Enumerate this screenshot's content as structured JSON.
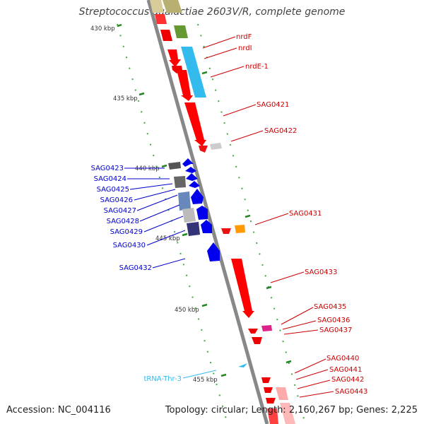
{
  "header": {
    "title": "Streptococcus agalactiae 2603V/R, complete genome"
  },
  "footer": {
    "accession_label": "Accession:",
    "accession": "NC_004116",
    "topology_label": "Topology:",
    "topology": "circular;",
    "length_label": "Length:",
    "length": "2,160,267 bp;",
    "genes_label": "Genes:",
    "genes": "2,225"
  },
  "colors": {
    "backbone": "#888888",
    "forward_gene": "#ff0000",
    "reverse_gene": "#0000ee",
    "label_red": "#cc0000",
    "label_blue": "#0000cc",
    "trna": "#33bbee",
    "tick": "#228822"
  },
  "ticks": [
    "430 kbp",
    "435 kbp",
    "440 kbp",
    "445 kbp",
    "450 kbp",
    "455 kbp"
  ],
  "labels_right": [
    "nrdF",
    "nrdI",
    "nrdE-1",
    "SAG0421",
    "SAG0422",
    "SAG0431",
    "SAG0433",
    "SAG0435",
    "SAG0436",
    "SAG0437",
    "SAG0440",
    "SAG0441",
    "SAG0442",
    "SAG0443"
  ],
  "labels_left": [
    "SAG0423",
    "SAG0424",
    "SAG0425",
    "SAG0426",
    "SAG0427",
    "SAG0428",
    "SAG0429",
    "SAG0430",
    "SAG0432"
  ],
  "trna_label": "tRNA-Thr-3"
}
